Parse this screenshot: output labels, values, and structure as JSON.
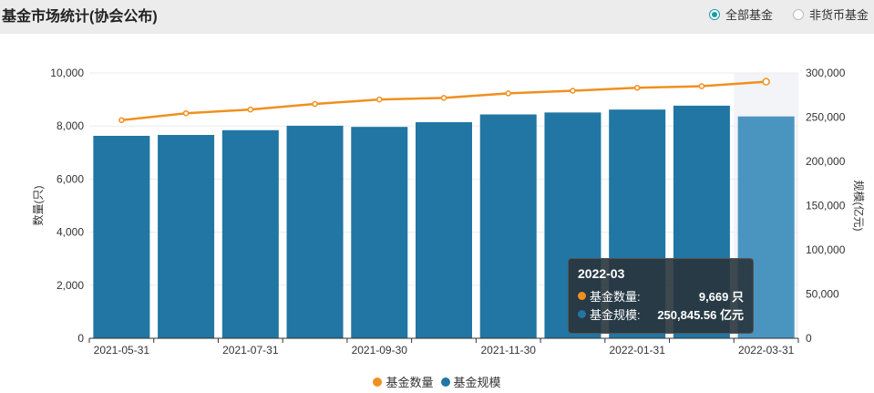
{
  "page": {
    "title": "基金市场统计(协会公布)",
    "filters": [
      {
        "label": "全部基金",
        "selected": true
      },
      {
        "label": "非货币基金",
        "selected": false
      }
    ]
  },
  "colors": {
    "count": "#f0901e",
    "scale": "#2176a3",
    "scale_highlight": "#4a95c0"
  },
  "chart_data": {
    "type": "bar+line",
    "categories": [
      "2021-05",
      "2021-06",
      "2021-07",
      "2021-08",
      "2021-09",
      "2021-10",
      "2021-11",
      "2021-12",
      "2022-01",
      "2022-02",
      "2022-03"
    ],
    "x_tick_labels": [
      "2021-05-31",
      "2021-07-31",
      "2021-09-30",
      "2021-11-30",
      "2022-01-31",
      "2022-03-31"
    ],
    "y_left": {
      "label": "数量(只)",
      "ticks": [
        "0",
        "2,000",
        "4,000",
        "6,000",
        "8,000",
        "10,000"
      ],
      "range": [
        0,
        10000
      ]
    },
    "y_right": {
      "label": "规模(亿元)",
      "ticks": [
        "0",
        "50,000",
        "100,000",
        "150,000",
        "200,000",
        "250,000",
        "300,000"
      ],
      "range": [
        0,
        300000
      ]
    },
    "series": [
      {
        "name": "基金数量",
        "type": "line",
        "axis": "left",
        "values": [
          8220,
          8480,
          8620,
          8830,
          9000,
          9060,
          9230,
          9330,
          9440,
          9500,
          9669
        ]
      },
      {
        "name": "基金规模",
        "type": "bar",
        "axis": "right",
        "values": [
          228900,
          229900,
          235300,
          240300,
          239000,
          244300,
          253100,
          255300,
          258600,
          263000,
          250845.56
        ]
      }
    ],
    "highlight_index": 10,
    "grid": true,
    "legend_position": "bottom-center"
  },
  "tooltip": {
    "title": "2022-03",
    "rows": [
      {
        "label": "基金数量:",
        "value": "9,669 只"
      },
      {
        "label": "基金规模:",
        "value": "250,845.56 亿元"
      }
    ]
  },
  "legend": [
    {
      "label": "基金数量"
    },
    {
      "label": "基金规模"
    }
  ]
}
